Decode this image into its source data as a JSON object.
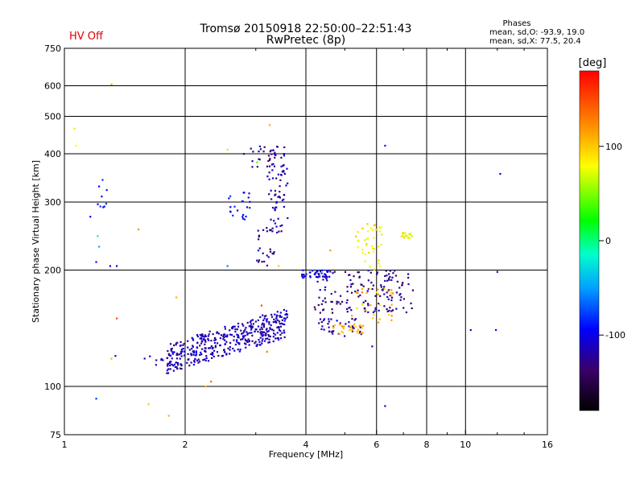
{
  "header": {
    "status": "HV Off",
    "status_color": "#e00000",
    "title_line1": "Tromsø 20150918 22:50:00–22:51:43",
    "title_line2": "RwPretec (8p)",
    "phases_title": "Phases",
    "phases_o": "mean, sd,O: -93.9, 19.0",
    "phases_x": "mean, sd,X:  77.5, 20.4"
  },
  "colorbar": {
    "label": "[deg]",
    "ticks": [
      "100",
      "0",
      "-100"
    ],
    "tick_values": [
      100,
      0,
      -100
    ],
    "range": [
      -180,
      180
    ]
  },
  "chart_data": {
    "type": "scatter",
    "xlabel": "Frequency [MHz]",
    "ylabel": "Stationary phase Virtual Height [km]",
    "xscale": "log",
    "yscale": "log",
    "xlim": [
      1,
      16
    ],
    "ylim": [
      75,
      750
    ],
    "x_ticks": [
      1,
      2,
      4,
      6,
      8,
      10,
      16
    ],
    "x_tick_labels": [
      "1",
      "2",
      "4",
      "6",
      "8",
      "10",
      "16"
    ],
    "x_gridlines": [
      2,
      4,
      6,
      8,
      10
    ],
    "y_ticks": [
      75,
      100,
      200,
      300,
      400,
      500,
      600,
      750
    ],
    "y_tick_labels": [
      "75",
      "100",
      "200",
      "300",
      "400",
      "500",
      "600",
      "750"
    ],
    "y_gridlines": [
      100,
      200,
      300,
      400,
      500,
      600
    ],
    "grid": true,
    "color_by": "phase [deg]",
    "clusters": [
      {
        "x_range": [
          1.8,
          3.6
        ],
        "y_range": [
          108,
          160
        ],
        "phase": -115,
        "count": 420,
        "trend": 0.55
      },
      {
        "x_range": [
          3.2,
          3.6
        ],
        "y_range": [
          250,
          420
        ],
        "phase": -120,
        "count": 80,
        "trend": 0
      },
      {
        "x_range": [
          3.0,
          3.35
        ],
        "y_range": [
          205,
          260
        ],
        "phase": -125,
        "count": 25,
        "trend": 0
      },
      {
        "x_range": [
          2.55,
          2.9
        ],
        "y_range": [
          270,
          320
        ],
        "phase": -95,
        "count": 22,
        "trend": 0
      },
      {
        "x_range": [
          2.9,
          3.3
        ],
        "y_range": [
          370,
          420
        ],
        "phase": -125,
        "count": 14,
        "trend": 0
      },
      {
        "x_range": [
          1.55,
          1.85
        ],
        "y_range": [
          110,
          120
        ],
        "phase": -110,
        "count": 12,
        "trend": 0
      },
      {
        "x_range": [
          1.2,
          1.28
        ],
        "y_range": [
          290,
          350
        ],
        "phase": -95,
        "count": 9,
        "trend": 0
      },
      {
        "x_range": [
          3.9,
          4.6
        ],
        "y_range": [
          190,
          200
        ],
        "phase": -100,
        "count": 40,
        "trend": 0
      },
      {
        "x_range": [
          4.2,
          7.4
        ],
        "y_range": [
          155,
          200
        ],
        "phase": -130,
        "count": 150,
        "trend": 0
      },
      {
        "x_range": [
          4.3,
          5.5
        ],
        "y_range": [
          135,
          150
        ],
        "phase": -120,
        "count": 40,
        "trend": 0
      },
      {
        "x_range": [
          4.6,
          5.6
        ],
        "y_range": [
          136,
          145
        ],
        "phase": 110,
        "count": 30,
        "trend": 0
      },
      {
        "x_range": [
          5.3,
          6.2
        ],
        "y_range": [
          200,
          265
        ],
        "phase": 85,
        "count": 40,
        "trend": 0
      },
      {
        "x_range": [
          6.9,
          7.4
        ],
        "y_range": [
          242,
          250
        ],
        "phase": 80,
        "count": 18,
        "trend": 0
      },
      {
        "x_range": [
          5.2,
          6.6
        ],
        "y_range": [
          145,
          180
        ],
        "phase": 110,
        "count": 30,
        "trend": 0
      }
    ],
    "points": [
      {
        "x": 1.06,
        "y": 465,
        "phase": 90
      },
      {
        "x": 1.07,
        "y": 420,
        "phase": 80
      },
      {
        "x": 1.31,
        "y": 605,
        "phase": 110
      },
      {
        "x": 1.16,
        "y": 275,
        "phase": -95
      },
      {
        "x": 1.21,
        "y": 245,
        "phase": -20
      },
      {
        "x": 1.22,
        "y": 230,
        "phase": -40
      },
      {
        "x": 1.2,
        "y": 210,
        "phase": -90
      },
      {
        "x": 1.3,
        "y": 205,
        "phase": -100
      },
      {
        "x": 1.35,
        "y": 205,
        "phase": -110
      },
      {
        "x": 1.53,
        "y": 255,
        "phase": 120
      },
      {
        "x": 1.35,
        "y": 150,
        "phase": 150
      },
      {
        "x": 1.34,
        "y": 120,
        "phase": -100
      },
      {
        "x": 1.31,
        "y": 118,
        "phase": 110
      },
      {
        "x": 1.2,
        "y": 93,
        "phase": -80
      },
      {
        "x": 1.62,
        "y": 90,
        "phase": 100
      },
      {
        "x": 1.82,
        "y": 84,
        "phase": 110
      },
      {
        "x": 1.9,
        "y": 170,
        "phase": 110
      },
      {
        "x": 2.25,
        "y": 100,
        "phase": 110
      },
      {
        "x": 2.32,
        "y": 103,
        "phase": 140
      },
      {
        "x": 2.55,
        "y": 410,
        "phase": 60
      },
      {
        "x": 2.55,
        "y": 205,
        "phase": -60
      },
      {
        "x": 2.8,
        "y": 400,
        "phase": -110
      },
      {
        "x": 3.02,
        "y": 380,
        "phase": 40
      },
      {
        "x": 3.25,
        "y": 475,
        "phase": 110
      },
      {
        "x": 3.2,
        "y": 123,
        "phase": 130
      },
      {
        "x": 3.1,
        "y": 162,
        "phase": 150
      },
      {
        "x": 3.42,
        "y": 205,
        "phase": 100
      },
      {
        "x": 6.3,
        "y": 420,
        "phase": -90
      },
      {
        "x": 6.3,
        "y": 89,
        "phase": -100
      },
      {
        "x": 5.85,
        "y": 127,
        "phase": -110
      },
      {
        "x": 12.2,
        "y": 355,
        "phase": -110
      },
      {
        "x": 12.0,
        "y": 198,
        "phase": -100
      },
      {
        "x": 11.9,
        "y": 140,
        "phase": -100
      },
      {
        "x": 10.3,
        "y": 140,
        "phase": -110
      },
      {
        "x": 4.6,
        "y": 225,
        "phase": 120
      }
    ]
  }
}
